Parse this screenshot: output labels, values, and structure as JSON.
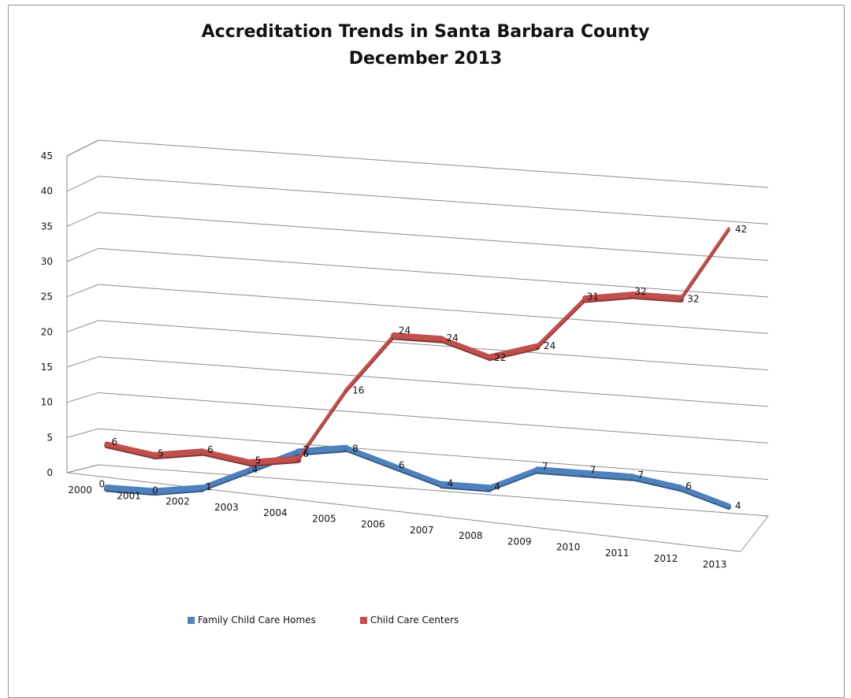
{
  "title_line1": "Accreditation Trends in Santa Barbara County",
  "title_line2": "December 2013",
  "chart_data": {
    "type": "line",
    "title": "Accreditation Trends in Santa Barbara County December 2013",
    "xlabel": "",
    "ylabel": "",
    "categories": [
      "2000",
      "2001",
      "2002",
      "2003",
      "2004",
      "2005",
      "2006",
      "2007",
      "2008",
      "2009",
      "2010",
      "2011",
      "2012",
      "2013"
    ],
    "ylim": [
      0,
      45
    ],
    "yticks": [
      "0",
      "5",
      "10",
      "15",
      "20",
      "25",
      "30",
      "35",
      "40",
      "45"
    ],
    "grid": true,
    "legend_position": "bottom",
    "series": [
      {
        "name": "Family Child Care Homes",
        "color": "#4f81bd",
        "values": [
          0,
          0,
          1,
          4,
          7,
          8,
          6,
          4,
          4,
          7,
          7,
          7,
          6,
          4
        ]
      },
      {
        "name": "Child Care Centers",
        "color": "#c0504d",
        "values": [
          6,
          5,
          6,
          5,
          6,
          16,
          24,
          24,
          22,
          24,
          31,
          32,
          32,
          42
        ]
      }
    ]
  }
}
